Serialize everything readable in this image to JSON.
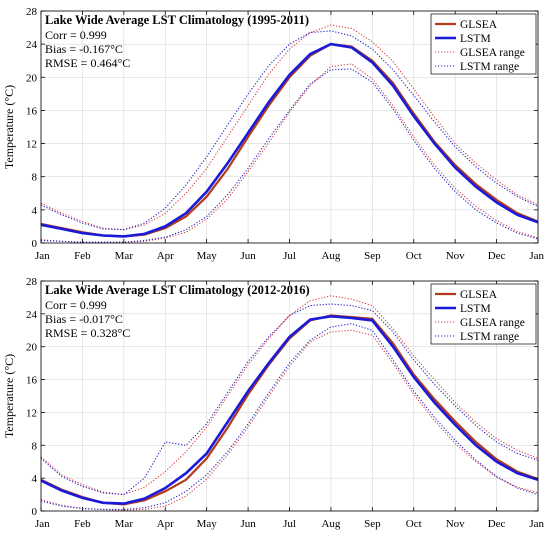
{
  "chart_data": [
    {
      "type": "line",
      "title": "Lake Wide Average LST Climatology (1995-2011)",
      "stats": [
        "Corr = 0.999",
        "Bias = -0.167°C",
        "RMSE = 0.464°C"
      ],
      "xlabel": "",
      "ylabel": "Temperature (°C)",
      "ylim": [
        0,
        28
      ],
      "yticks": [
        "0",
        "4",
        "8",
        "12",
        "16",
        "20",
        "24",
        "28"
      ],
      "xticks": [
        "Jan",
        "Feb",
        "Mar",
        "Apr",
        "May",
        "Jun",
        "Jul",
        "Aug",
        "Sep",
        "Oct",
        "Nov",
        "Dec",
        "Jan"
      ],
      "x_unit": "month",
      "x": [
        0,
        0.5,
        1,
        1.5,
        2,
        2.5,
        3,
        3.5,
        4,
        4.5,
        5,
        5.5,
        6,
        6.5,
        7,
        7.5,
        8,
        8.5,
        9,
        9.5,
        10,
        10.5,
        11,
        11.5,
        12
      ],
      "grid": true,
      "legend_position": "top-right",
      "legend": [
        "GLSEA",
        "LSTM",
        "GLSEA range",
        "LSTM range"
      ],
      "series": [
        {
          "name": "GLSEA",
          "color": "#b33a1a",
          "style": "solid",
          "values": [
            2.3,
            1.8,
            1.3,
            0.9,
            0.8,
            1.0,
            1.8,
            3.2,
            5.6,
            8.9,
            12.8,
            16.6,
            20.0,
            22.6,
            24.0,
            23.7,
            22.0,
            19.3,
            15.6,
            12.2,
            9.4,
            7.1,
            5.2,
            3.6,
            2.6
          ]
        },
        {
          "name": "LSTM",
          "color": "#1a1adb",
          "style": "solid",
          "values": [
            2.2,
            1.7,
            1.2,
            0.9,
            0.8,
            1.1,
            2.0,
            3.6,
            6.2,
            9.6,
            13.3,
            17.0,
            20.3,
            22.8,
            24.0,
            23.6,
            21.8,
            19.0,
            15.3,
            12.0,
            9.1,
            6.8,
            4.9,
            3.4,
            2.5
          ]
        },
        {
          "name": "GLSEA range",
          "color": "#d8413f",
          "style": "dotted",
          "role": "upper",
          "values": [
            4.8,
            3.6,
            2.6,
            1.8,
            1.6,
            2.2,
            3.6,
            6.0,
            9.0,
            12.8,
            16.6,
            20.4,
            23.4,
            25.4,
            26.3,
            25.9,
            24.3,
            21.9,
            18.6,
            15.2,
            12.0,
            9.6,
            7.6,
            5.8,
            4.6
          ]
        },
        {
          "name": "GLSEA range",
          "color": "#d8413f",
          "style": "dotted",
          "role": "lower",
          "values": [
            0.4,
            0.2,
            0.1,
            0.1,
            0.1,
            0.2,
            0.6,
            1.3,
            2.9,
            5.3,
            8.6,
            12.1,
            15.8,
            19.0,
            21.3,
            21.6,
            19.8,
            16.6,
            12.8,
            9.4,
            6.6,
            4.4,
            2.7,
            1.4,
            0.6
          ]
        },
        {
          "name": "LSTM range",
          "color": "#2222cc",
          "style": "dotted",
          "role": "upper",
          "values": [
            4.6,
            3.4,
            2.4,
            1.7,
            1.6,
            2.4,
            4.2,
            7.0,
            10.4,
            14.2,
            18.0,
            21.4,
            24.0,
            25.4,
            25.6,
            25.0,
            23.4,
            20.9,
            17.8,
            14.6,
            11.6,
            9.2,
            7.2,
            5.6,
            4.4
          ]
        },
        {
          "name": "LSTM range",
          "color": "#2222cc",
          "style": "dotted",
          "role": "lower",
          "values": [
            0.3,
            0.2,
            0.1,
            0.1,
            0.1,
            0.3,
            0.7,
            1.6,
            3.2,
            5.8,
            9.0,
            12.6,
            16.0,
            19.2,
            20.9,
            21.0,
            19.4,
            16.2,
            12.4,
            9.0,
            6.2,
            4.0,
            2.4,
            1.2,
            0.5
          ]
        }
      ]
    },
    {
      "type": "line",
      "title": "Lake Wide Average LST Climatology (2012-2016)",
      "stats": [
        "Corr = 0.999",
        "Bias = -0.017°C",
        "RMSE = 0.328°C"
      ],
      "xlabel": "",
      "ylabel": "Temperature (°C)",
      "ylim": [
        0,
        28
      ],
      "yticks": [
        "0",
        "4",
        "8",
        "12",
        "16",
        "20",
        "24",
        "28"
      ],
      "xticks": [
        "Jan",
        "Feb",
        "Mar",
        "Apr",
        "May",
        "Jun",
        "Jul",
        "Aug",
        "Sep",
        "Oct",
        "Nov",
        "Dec",
        "Jan"
      ],
      "x_unit": "month",
      "x": [
        0,
        0.5,
        1,
        1.5,
        2,
        2.5,
        3,
        3.5,
        4,
        4.5,
        5,
        5.5,
        6,
        6.5,
        7,
        7.5,
        8,
        8.5,
        9,
        9.5,
        10,
        10.5,
        11,
        11.5,
        12
      ],
      "grid": true,
      "legend_position": "top-right",
      "legend": [
        "GLSEA",
        "LSTM",
        "GLSEA range",
        "LSTM range"
      ],
      "series": [
        {
          "name": "GLSEA",
          "color": "#b33a1a",
          "style": "solid",
          "values": [
            3.8,
            2.6,
            1.7,
            1.0,
            0.8,
            1.3,
            2.4,
            3.8,
            6.4,
            10.1,
            14.2,
            17.8,
            21.0,
            23.2,
            23.8,
            23.6,
            23.4,
            20.4,
            16.6,
            13.6,
            10.9,
            8.4,
            6.3,
            4.8,
            3.9
          ]
        },
        {
          "name": "LSTM",
          "color": "#1a1adb",
          "style": "solid",
          "values": [
            3.7,
            2.5,
            1.6,
            1.0,
            0.9,
            1.5,
            2.8,
            4.6,
            7.0,
            10.8,
            14.6,
            18.0,
            21.2,
            23.3,
            23.7,
            23.5,
            23.2,
            20.0,
            16.3,
            13.2,
            10.5,
            8.0,
            6.0,
            4.6,
            3.8
          ]
        },
        {
          "name": "GLSEA range",
          "color": "#d8413f",
          "style": "dotted",
          "role": "upper",
          "values": [
            6.6,
            4.4,
            3.2,
            2.3,
            2.0,
            2.9,
            4.8,
            7.2,
            10.2,
            14.0,
            17.8,
            21.0,
            23.8,
            25.6,
            26.2,
            25.8,
            25.0,
            22.2,
            18.9,
            16.0,
            13.2,
            10.8,
            8.8,
            7.4,
            6.4
          ]
        },
        {
          "name": "GLSEA range",
          "color": "#d8413f",
          "style": "dotted",
          "role": "lower",
          "values": [
            1.4,
            0.7,
            0.3,
            0.2,
            0.1,
            0.2,
            0.6,
            1.8,
            3.9,
            6.8,
            10.2,
            14.0,
            17.6,
            20.6,
            21.8,
            22.0,
            21.4,
            18.0,
            14.2,
            11.0,
            8.2,
            6.0,
            4.1,
            2.9,
            2.2
          ]
        },
        {
          "name": "LSTM range",
          "color": "#2222cc",
          "style": "dotted",
          "role": "upper",
          "values": [
            6.4,
            4.2,
            3.0,
            2.2,
            2.0,
            4.0,
            8.4,
            8.0,
            10.6,
            14.4,
            18.2,
            21.2,
            23.8,
            25.0,
            25.2,
            25.0,
            24.4,
            21.8,
            18.4,
            15.4,
            12.8,
            10.4,
            8.4,
            7.0,
            6.2
          ]
        },
        {
          "name": "LSTM range",
          "color": "#2222cc",
          "style": "dotted",
          "role": "lower",
          "values": [
            1.2,
            0.6,
            0.3,
            0.2,
            0.2,
            0.4,
            1.0,
            2.4,
            4.4,
            7.2,
            10.6,
            14.4,
            18.0,
            20.8,
            22.4,
            22.8,
            22.0,
            18.4,
            14.6,
            11.4,
            8.6,
            6.2,
            4.2,
            2.8,
            2.0
          ]
        }
      ]
    }
  ]
}
